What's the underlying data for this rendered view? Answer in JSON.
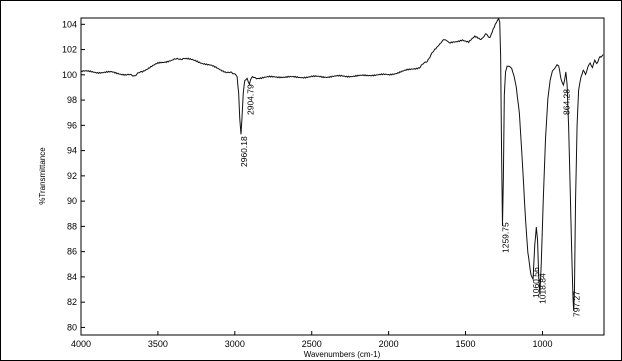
{
  "chart_data": {
    "type": "line",
    "title": "",
    "xlabel": "Wavenumbers (cm-1)",
    "ylabel": "%Transmittance",
    "xlim": [
      4000,
      600
    ],
    "ylim": [
      79.4,
      104.5
    ],
    "x_ticks": [
      4000,
      3500,
      3000,
      2500,
      2000,
      1500,
      1000
    ],
    "x_tick_labels": [
      "4000",
      "3500",
      "3000",
      "2500",
      "2000",
      "1500",
      "1000"
    ],
    "y_ticks": [
      80,
      82,
      84,
      86,
      88,
      90,
      92,
      94,
      96,
      98,
      100,
      102,
      104
    ],
    "y_tick_labels": [
      "80",
      "82",
      "84",
      "86",
      "88",
      "90",
      "92",
      "94",
      "96",
      "98",
      "100",
      "102",
      "104"
    ],
    "grid": false,
    "series": [
      {
        "line_color": "#111111",
        "points": [
          [
            4000,
            100.3
          ],
          [
            3900,
            100.2
          ],
          [
            3800,
            100.2
          ],
          [
            3700,
            100.0
          ],
          [
            3650,
            99.95
          ],
          [
            3600,
            100.3
          ],
          [
            3500,
            100.9
          ],
          [
            3400,
            101.2
          ],
          [
            3330,
            101.3
          ],
          [
            3250,
            101.1
          ],
          [
            3150,
            100.7
          ],
          [
            3050,
            100.2
          ],
          [
            3000,
            100.1
          ],
          [
            2985,
            99.9
          ],
          [
            2975,
            98.5
          ],
          [
            2968,
            96.5
          ],
          [
            2960,
            95.3
          ],
          [
            2954,
            96.4
          ],
          [
            2945,
            98.6
          ],
          [
            2935,
            99.5
          ],
          [
            2920,
            99.7
          ],
          [
            2912,
            99.4
          ],
          [
            2905,
            99.2
          ],
          [
            2898,
            99.6
          ],
          [
            2885,
            99.8
          ],
          [
            2860,
            99.75
          ],
          [
            2800,
            99.8
          ],
          [
            2700,
            99.85
          ],
          [
            2600,
            99.8
          ],
          [
            2500,
            99.85
          ],
          [
            2400,
            99.85
          ],
          [
            2300,
            99.9
          ],
          [
            2200,
            99.9
          ],
          [
            2100,
            100.0
          ],
          [
            2000,
            100.0
          ],
          [
            1900,
            100.3
          ],
          [
            1800,
            100.6
          ],
          [
            1750,
            101.1
          ],
          [
            1700,
            102.0
          ],
          [
            1660,
            102.6
          ],
          [
            1630,
            102.8
          ],
          [
            1600,
            102.5
          ],
          [
            1560,
            102.6
          ],
          [
            1520,
            102.8
          ],
          [
            1480,
            102.6
          ],
          [
            1440,
            103.0
          ],
          [
            1400,
            102.8
          ],
          [
            1370,
            103.2
          ],
          [
            1340,
            103.0
          ],
          [
            1320,
            103.6
          ],
          [
            1300,
            104.1
          ],
          [
            1285,
            104.4
          ],
          [
            1278,
            104.2
          ],
          [
            1272,
            101.5
          ],
          [
            1266,
            94.0
          ],
          [
            1260,
            88.0
          ],
          [
            1254,
            92.0
          ],
          [
            1248,
            98.5
          ],
          [
            1240,
            100.3
          ],
          [
            1230,
            100.6
          ],
          [
            1215,
            100.7
          ],
          [
            1200,
            100.5
          ],
          [
            1185,
            100.0
          ],
          [
            1170,
            99.0
          ],
          [
            1150,
            97.0
          ],
          [
            1130,
            93.0
          ],
          [
            1110,
            88.5
          ],
          [
            1095,
            86.0
          ],
          [
            1085,
            85.0
          ],
          [
            1075,
            84.2
          ],
          [
            1061,
            83.8
          ],
          [
            1050,
            86.5
          ],
          [
            1040,
            88.0
          ],
          [
            1032,
            87.0
          ],
          [
            1025,
            84.2
          ],
          [
            1017,
            82.6
          ],
          [
            1008,
            85.0
          ],
          [
            995,
            90.0
          ],
          [
            980,
            95.0
          ],
          [
            965,
            98.0
          ],
          [
            950,
            99.6
          ],
          [
            935,
            100.3
          ],
          [
            920,
            100.6
          ],
          [
            905,
            100.8
          ],
          [
            895,
            100.7
          ],
          [
            882,
            99.8
          ],
          [
            872,
            99.4
          ],
          [
            864,
            99.2
          ],
          [
            856,
            99.6
          ],
          [
            848,
            100.2
          ],
          [
            840,
            99.2
          ],
          [
            830,
            96.0
          ],
          [
            820,
            91.0
          ],
          [
            810,
            86.0
          ],
          [
            802,
            82.5
          ],
          [
            797,
            81.3
          ],
          [
            792,
            83.0
          ],
          [
            785,
            90.0
          ],
          [
            775,
            96.0
          ],
          [
            765,
            98.8
          ],
          [
            750,
            99.8
          ],
          [
            735,
            100.3
          ],
          [
            720,
            100.0
          ],
          [
            705,
            100.6
          ],
          [
            690,
            101.0
          ],
          [
            675,
            100.6
          ],
          [
            660,
            101.2
          ],
          [
            648,
            100.9
          ],
          [
            635,
            101.2
          ],
          [
            625,
            101.5
          ],
          [
            615,
            101.4
          ],
          [
            606,
            101.6
          ]
        ]
      }
    ],
    "annotations": [
      {
        "text": "2960.18",
        "x": 2960.18,
        "y": 95.3
      },
      {
        "text": "2904.79",
        "x": 2904.79,
        "y": 99.2
      },
      {
        "text": "1259.75",
        "x": 1259.75,
        "y": 88.0
      },
      {
        "text": "1060.56",
        "x": 1060.56,
        "y": 83.8
      },
      {
        "text": "1018.84",
        "x": 1018.84,
        "y": 82.6
      },
      {
        "text": "864.28",
        "x": 864.28,
        "y": 99.2
      },
      {
        "text": "797.27",
        "x": 797.27,
        "y": 81.3
      }
    ]
  }
}
